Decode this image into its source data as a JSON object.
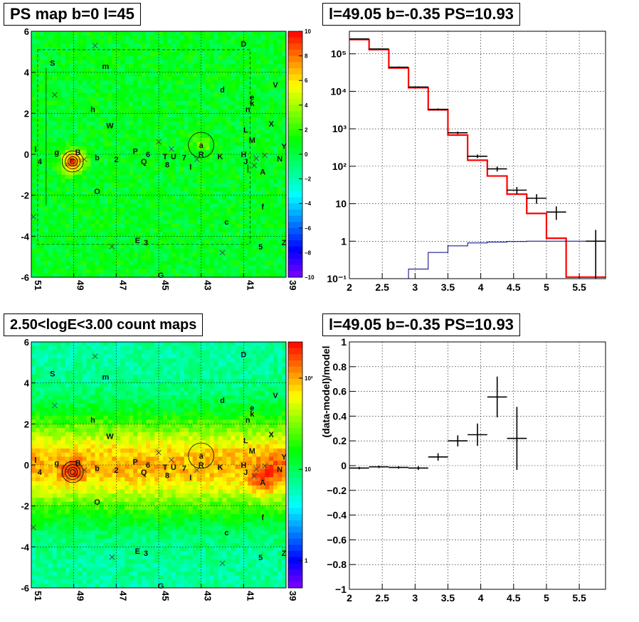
{
  "panel_titles": {
    "ps_map": "PS map b=0 l=45",
    "spectrum": "l=49.05 b=-0.35 PS=10.93",
    "count_map": "2.50<logE<3.00 count maps",
    "residual": "l=49.05 b=-0.35 PS=10.93"
  },
  "residual_ylabel": "(data-model)/model",
  "chart_data": [
    {
      "type": "heatmap",
      "title": "PS map b=0 l=45",
      "xlim": [
        51,
        39
      ],
      "ylim": [
        -6,
        6
      ],
      "x_ticks": [
        "51",
        "49",
        "47",
        "45",
        "43",
        "41",
        "39"
      ],
      "y_ticks": [
        "-6",
        "-4",
        "-2",
        "0",
        "2",
        "4",
        "6"
      ],
      "colorbar_ticks": [
        "10",
        "8",
        "6",
        "4",
        "2",
        "0",
        "−2",
        "−4",
        "−6",
        "−8",
        "−10"
      ],
      "colorbar_range": [
        -10,
        10
      ],
      "grid": true
    },
    {
      "type": "line",
      "title": "l=49.05 b=-0.35 PS=10.93",
      "log_y": true,
      "xlim": [
        2,
        5.9
      ],
      "ylim": [
        0.1,
        400000
      ],
      "x_ticks": [
        "2",
        "2.5",
        "3",
        "3.5",
        "4",
        "4.5",
        "5",
        "5.5"
      ],
      "y_ticks": [
        {
          "v": 0.1,
          "label": "10⁻¹"
        },
        {
          "v": 1,
          "label": "1"
        },
        {
          "v": 10,
          "label": "10"
        },
        {
          "v": 100,
          "label": "10²"
        },
        {
          "v": 1000,
          "label": "10³"
        },
        {
          "v": 10000,
          "label": "10⁴"
        },
        {
          "v": 100000,
          "label": "10⁵"
        }
      ],
      "grid": true,
      "series": [
        {
          "color": "#ff0000",
          "style": "step",
          "edges": [
            2.0,
            2.3,
            2.6,
            2.9,
            3.2,
            3.5,
            3.8,
            4.1,
            4.4,
            4.7,
            5.0,
            5.3,
            5.6,
            5.9
          ],
          "values": [
            240000,
            130000,
            42000,
            12500,
            3200,
            680,
            145,
            55,
            18,
            5.5,
            1.2,
            0.11,
            0.11
          ]
        },
        {
          "color": "#000080",
          "style": "step",
          "edges": [
            2.0,
            2.3,
            2.6,
            2.9,
            3.2,
            3.5,
            3.8,
            4.1,
            4.4,
            4.7,
            5.0,
            5.3,
            5.6,
            5.9
          ],
          "values": [
            0.08,
            0.08,
            0.09,
            0.18,
            0.5,
            0.75,
            0.9,
            0.95,
            0.98,
            1.0,
            1.0,
            1.0,
            1.0
          ]
        },
        {
          "color": "#000000",
          "style": "errorbars",
          "points": [
            {
              "x": 2.15,
              "y": 250000,
              "xerr": 0.15,
              "ylo": 245000,
              "yhi": 255000
            },
            {
              "x": 2.45,
              "y": 135000,
              "xerr": 0.15,
              "ylo": 131000,
              "yhi": 139000
            },
            {
              "x": 2.75,
              "y": 44000,
              "xerr": 0.15,
              "ylo": 42000,
              "yhi": 46000
            },
            {
              "x": 3.05,
              "y": 13000,
              "xerr": 0.15,
              "ylo": 12400,
              "yhi": 13600
            },
            {
              "x": 3.35,
              "y": 3300,
              "xerr": 0.15,
              "ylo": 3100,
              "yhi": 3500
            },
            {
              "x": 3.65,
              "y": 780,
              "xerr": 0.15,
              "ylo": 720,
              "yhi": 840
            },
            {
              "x": 3.95,
              "y": 185,
              "xerr": 0.15,
              "ylo": 165,
              "yhi": 205
            },
            {
              "x": 4.25,
              "y": 85,
              "xerr": 0.15,
              "ylo": 72,
              "yhi": 98
            },
            {
              "x": 4.55,
              "y": 23,
              "xerr": 0.15,
              "ylo": 18,
              "yhi": 28
            },
            {
              "x": 4.85,
              "y": 14,
              "xerr": 0.15,
              "ylo": 10,
              "yhi": 18
            },
            {
              "x": 5.15,
              "y": 6,
              "xerr": 0.15,
              "ylo": 3.7,
              "yhi": 8.5
            },
            {
              "x": 5.75,
              "y": 1,
              "xerr": 0.15,
              "ylo": 0.1,
              "yhi": 2.0
            }
          ]
        }
      ]
    },
    {
      "type": "heatmap",
      "title": "2.50<logE<3.00 count maps",
      "xlim": [
        51,
        39
      ],
      "ylim": [
        -6,
        6
      ],
      "x_ticks": [
        "51",
        "49",
        "47",
        "45",
        "43",
        "41",
        "39"
      ],
      "y_ticks": [
        "-6",
        "-4",
        "-2",
        "0",
        "2",
        "4",
        "6"
      ],
      "colorbar_ticks": [
        {
          "v": 100,
          "label": "10²"
        },
        {
          "v": 10,
          "label": "10"
        },
        {
          "v": 1,
          "label": "1"
        }
      ],
      "colorbar_range": [
        0.5,
        250
      ],
      "log_z": true,
      "grid": true
    },
    {
      "type": "scatter",
      "title": "l=49.05 b=-0.35 PS=10.93",
      "ylabel": "(data-model)/model",
      "xlim": [
        2,
        5.9
      ],
      "ylim": [
        -1,
        1
      ],
      "x_ticks": [
        "2",
        "2.5",
        "3",
        "3.5",
        "4",
        "4.5",
        "5",
        "5.5"
      ],
      "y_ticks": [
        "1",
        "0.8",
        "0.6",
        "0.4",
        "0.2",
        "0",
        "−0.2",
        "−0.4",
        "−0.6",
        "−0.8",
        "−1"
      ],
      "grid": true,
      "points": [
        {
          "x": 2.15,
          "y": -0.02,
          "xerr": 0.15,
          "yerr": 0.01
        },
        {
          "x": 2.45,
          "y": -0.01,
          "xerr": 0.15,
          "yerr": 0.01
        },
        {
          "x": 2.75,
          "y": -0.015,
          "xerr": 0.15,
          "yerr": 0.01
        },
        {
          "x": 3.05,
          "y": -0.02,
          "xerr": 0.15,
          "yerr": 0.015
        },
        {
          "x": 3.35,
          "y": 0.07,
          "xerr": 0.15,
          "yerr": 0.03
        },
        {
          "x": 3.65,
          "y": 0.2,
          "xerr": 0.15,
          "yerr": 0.045
        },
        {
          "x": 3.95,
          "y": 0.25,
          "xerr": 0.15,
          "yerr": 0.09
        },
        {
          "x": 4.25,
          "y": 0.555,
          "xerr": 0.15,
          "yerr": 0.165
        },
        {
          "x": 4.55,
          "y": 0.22,
          "xerr": 0.15,
          "yerr": 0.255
        }
      ]
    }
  ],
  "sources": [
    {
      "label": "D",
      "l": 41.0,
      "b": 5.4
    },
    {
      "label": "S",
      "l": 50.0,
      "b": 4.45
    },
    {
      "label": "m",
      "l": 47.5,
      "b": 4.3
    },
    {
      "label": "V",
      "l": 39.5,
      "b": 3.4
    },
    {
      "label": "d",
      "l": 42.0,
      "b": 3.15
    },
    {
      "label": "e",
      "l": 40.6,
      "b": 2.8
    },
    {
      "label": "n",
      "l": 40.8,
      "b": 2.2
    },
    {
      "label": "k",
      "l": 40.6,
      "b": 2.5
    },
    {
      "label": "h",
      "l": 48.1,
      "b": 2.2
    },
    {
      "label": "W",
      "l": 47.3,
      "b": 1.4
    },
    {
      "label": "X",
      "l": 39.7,
      "b": 1.5
    },
    {
      "label": "L",
      "l": 40.9,
      "b": 1.2
    },
    {
      "label": "M",
      "l": 40.6,
      "b": 0.7
    },
    {
      "label": "Y",
      "l": 39.1,
      "b": 0.4
    },
    {
      "label": "a",
      "l": 43.0,
      "b": 0.45
    },
    {
      "label": "P",
      "l": 46.1,
      "b": 0.15
    },
    {
      "label": "6",
      "l": 45.5,
      "b": 0.0
    },
    {
      "label": "T",
      "l": 44.7,
      "b": -0.1
    },
    {
      "label": "U",
      "l": 44.3,
      "b": -0.1
    },
    {
      "label": "7",
      "l": 43.8,
      "b": -0.15
    },
    {
      "label": "R",
      "l": 43.0,
      "b": 0.0
    },
    {
      "label": "K",
      "l": 42.1,
      "b": -0.1
    },
    {
      "label": "H",
      "l": 41.0,
      "b": 0.0
    },
    {
      "label": "N",
      "l": 39.3,
      "b": -0.2
    },
    {
      "label": "l",
      "l": 50.8,
      "b": 0.25
    },
    {
      "label": "g",
      "l": 49.8,
      "b": 0.1
    },
    {
      "label": "B",
      "l": 48.8,
      "b": 0.1
    },
    {
      "label": "b",
      "l": 47.9,
      "b": -0.15
    },
    {
      "label": "2",
      "l": 47.0,
      "b": -0.25
    },
    {
      "label": "Q",
      "l": 45.7,
      "b": -0.35
    },
    {
      "label": "8",
      "l": 44.6,
      "b": -0.5
    },
    {
      "label": "I",
      "l": 43.5,
      "b": -0.6
    },
    {
      "label": "J",
      "l": 40.9,
      "b": -0.35
    },
    {
      "label": "4",
      "l": 50.6,
      "b": -0.35
    },
    {
      "label": "A",
      "l": 40.1,
      "b": -0.85
    },
    {
      "label": "O",
      "l": 47.9,
      "b": -1.8
    },
    {
      "label": "f",
      "l": 40.1,
      "b": -2.55
    },
    {
      "label": "c",
      "l": 41.8,
      "b": -3.3
    },
    {
      "label": "E",
      "l": 46.0,
      "b": -4.2
    },
    {
      "label": "3",
      "l": 45.6,
      "b": -4.3
    },
    {
      "label": "5",
      "l": 40.2,
      "b": -4.5
    },
    {
      "label": "Z",
      "l": 39.1,
      "b": -4.3
    },
    {
      "label": "G",
      "l": 44.9,
      "b": -5.9
    }
  ],
  "crosses": [
    {
      "l": 48.0,
      "b": 5.3
    },
    {
      "l": 49.9,
      "b": 2.9
    },
    {
      "l": 45.0,
      "b": 0.6
    },
    {
      "l": 44.4,
      "b": 0.25
    },
    {
      "l": 43.2,
      "b": -0.25
    },
    {
      "l": 40.4,
      "b": -0.2
    },
    {
      "l": 40.0,
      "b": -0.05
    },
    {
      "l": 40.5,
      "b": -0.55
    },
    {
      "l": 50.9,
      "b": -3.05
    },
    {
      "l": 47.2,
      "b": -4.5
    },
    {
      "l": 42.0,
      "b": -4.8
    },
    {
      "l": 48.5,
      "b": -0.25
    }
  ],
  "circles": [
    {
      "l": 43.0,
      "b": 0.45,
      "r": 0.6
    },
    {
      "l": 49.05,
      "b": -0.35,
      "r": 0.5
    },
    {
      "l": 49.05,
      "b": -0.35,
      "r": 0.35
    },
    {
      "l": 49.05,
      "b": -0.35,
      "r": 0.22
    },
    {
      "l": 49.05,
      "b": -0.35,
      "r": 0.12
    }
  ]
}
